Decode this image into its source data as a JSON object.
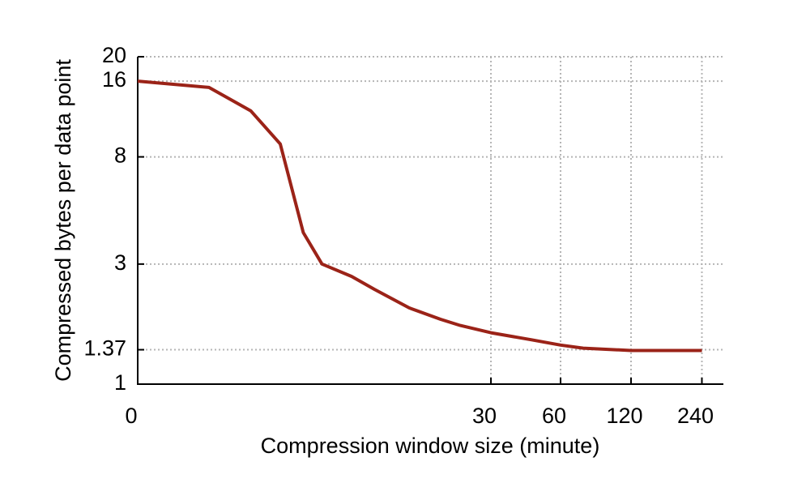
{
  "chart_data": {
    "type": "line",
    "x_label": "Compression window size (minute)",
    "y_label": "Compressed bytes per data point",
    "x": [
      0,
      1,
      2,
      3,
      4,
      5,
      7,
      9,
      13,
      18,
      22,
      30,
      45,
      60,
      75,
      120,
      240
    ],
    "series": [
      {
        "color": "#9b2318",
        "values": [
          16,
          15.1,
          12.2,
          9,
          4,
          3,
          2.68,
          2.38,
          2.01,
          1.81,
          1.71,
          1.6,
          1.5,
          1.43,
          1.39,
          1.36,
          1.36
        ]
      }
    ],
    "xscale": "log1p",
    "yscale": "log",
    "xlim": [
      0,
      296
    ],
    "xticks": [
      0,
      30,
      60,
      120,
      240
    ],
    "ylim": [
      1,
      20
    ],
    "yticks": [
      1,
      1.37,
      3,
      8,
      16,
      20
    ],
    "grid": true
  }
}
